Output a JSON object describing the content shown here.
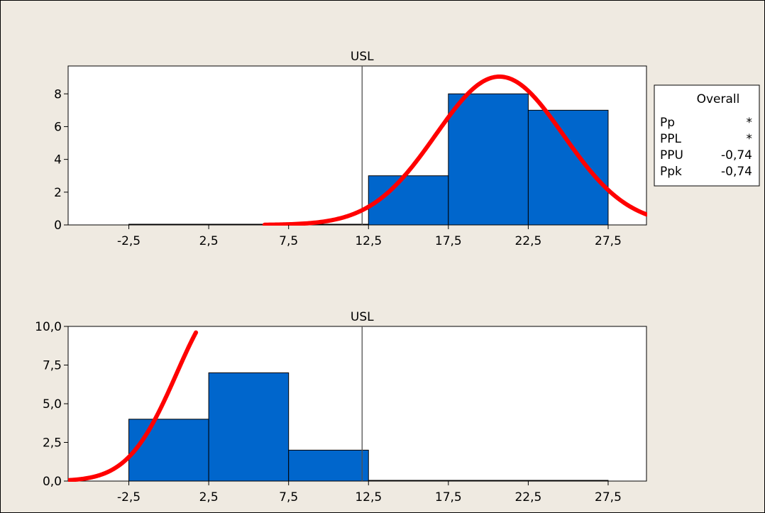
{
  "colors": {
    "background": "#EFEAE1",
    "plot_area": "#FFFFFF",
    "bar_fill": "#0066CC",
    "bar_edge": "#000000",
    "curve": "#FF0000",
    "spec_line": "#505050"
  },
  "stats_box": {
    "title": "Overall",
    "rows": [
      {
        "label": "Pp",
        "value": "*"
      },
      {
        "label": "PPL",
        "value": "*"
      },
      {
        "label": "PPU",
        "value": "-0,74"
      },
      {
        "label": "Ppk",
        "value": "-0,74"
      }
    ]
  },
  "chart_data": [
    {
      "type": "bar",
      "chart_style": "histogram with fitted normal curve",
      "title": "",
      "xlabel": "",
      "ylabel": "",
      "xlim": [
        -6.3,
        29.9
      ],
      "ylim": [
        0,
        9.7
      ],
      "x_ticks": [
        {
          "value": -2.5,
          "label": "-2,5"
        },
        {
          "value": 2.5,
          "label": "2,5"
        },
        {
          "value": 7.5,
          "label": "7,5"
        },
        {
          "value": 12.5,
          "label": "12,5"
        },
        {
          "value": 17.5,
          "label": "17,5"
        },
        {
          "value": 22.5,
          "label": "22,5"
        },
        {
          "value": 27.5,
          "label": "27,5"
        }
      ],
      "y_ticks": [
        {
          "value": 0,
          "label": "0"
        },
        {
          "value": 2,
          "label": "2"
        },
        {
          "value": 4,
          "label": "4"
        },
        {
          "value": 6,
          "label": "6"
        },
        {
          "value": 8,
          "label": "8"
        }
      ],
      "bins": [
        {
          "from": -2.5,
          "to": 2.5,
          "count": 0
        },
        {
          "from": 2.5,
          "to": 7.5,
          "count": 0
        },
        {
          "from": 7.5,
          "to": 12.5,
          "count": 0
        },
        {
          "from": 12.5,
          "to": 17.5,
          "count": 3
        },
        {
          "from": 17.5,
          "to": 22.5,
          "count": 8
        },
        {
          "from": 22.5,
          "to": 27.5,
          "count": 7
        }
      ],
      "spec_limits": [
        {
          "label": "USL",
          "value": 12.1
        }
      ],
      "fitted_curve": {
        "distribution": "normal",
        "mean": 20.7,
        "sd": 4.0,
        "peak": 9.05,
        "x_start": 6.0,
        "x_end": 29.9
      }
    },
    {
      "type": "bar",
      "chart_style": "histogram with fitted normal curve",
      "title": "",
      "xlabel": "",
      "ylabel": "",
      "xlim": [
        -6.3,
        29.9
      ],
      "ylim": [
        0,
        10.0
      ],
      "x_ticks": [
        {
          "value": -2.5,
          "label": "-2,5"
        },
        {
          "value": 2.5,
          "label": "2,5"
        },
        {
          "value": 7.5,
          "label": "7,5"
        },
        {
          "value": 12.5,
          "label": "12,5"
        },
        {
          "value": 17.5,
          "label": "17,5"
        },
        {
          "value": 22.5,
          "label": "22,5"
        },
        {
          "value": 27.5,
          "label": "27,5"
        }
      ],
      "y_ticks": [
        {
          "value": 0,
          "label": "0,0"
        },
        {
          "value": 2.5,
          "label": "2,5"
        },
        {
          "value": 5,
          "label": "5,0"
        },
        {
          "value": 7.5,
          "label": "7,5"
        },
        {
          "value": 10,
          "label": "10,0"
        }
      ],
      "bins": [
        {
          "from": -2.5,
          "to": 2.5,
          "count": 4
        },
        {
          "from": 2.5,
          "to": 7.5,
          "count": 7
        },
        {
          "from": 7.5,
          "to": 12.5,
          "count": 2
        },
        {
          "from": 12.5,
          "to": 17.5,
          "count": 0
        },
        {
          "from": 17.5,
          "to": 22.5,
          "count": 0
        },
        {
          "from": 22.5,
          "to": 27.5,
          "count": 0
        }
      ],
      "spec_limits": [
        {
          "label": "USL",
          "value": 12.1
        }
      ],
      "fitted_curve": {
        "distribution": "normal",
        "mean": 3.5,
        "sd": 3.0,
        "peak": 11.5,
        "x_start": -6.3,
        "x_end": 1.7
      }
    }
  ]
}
